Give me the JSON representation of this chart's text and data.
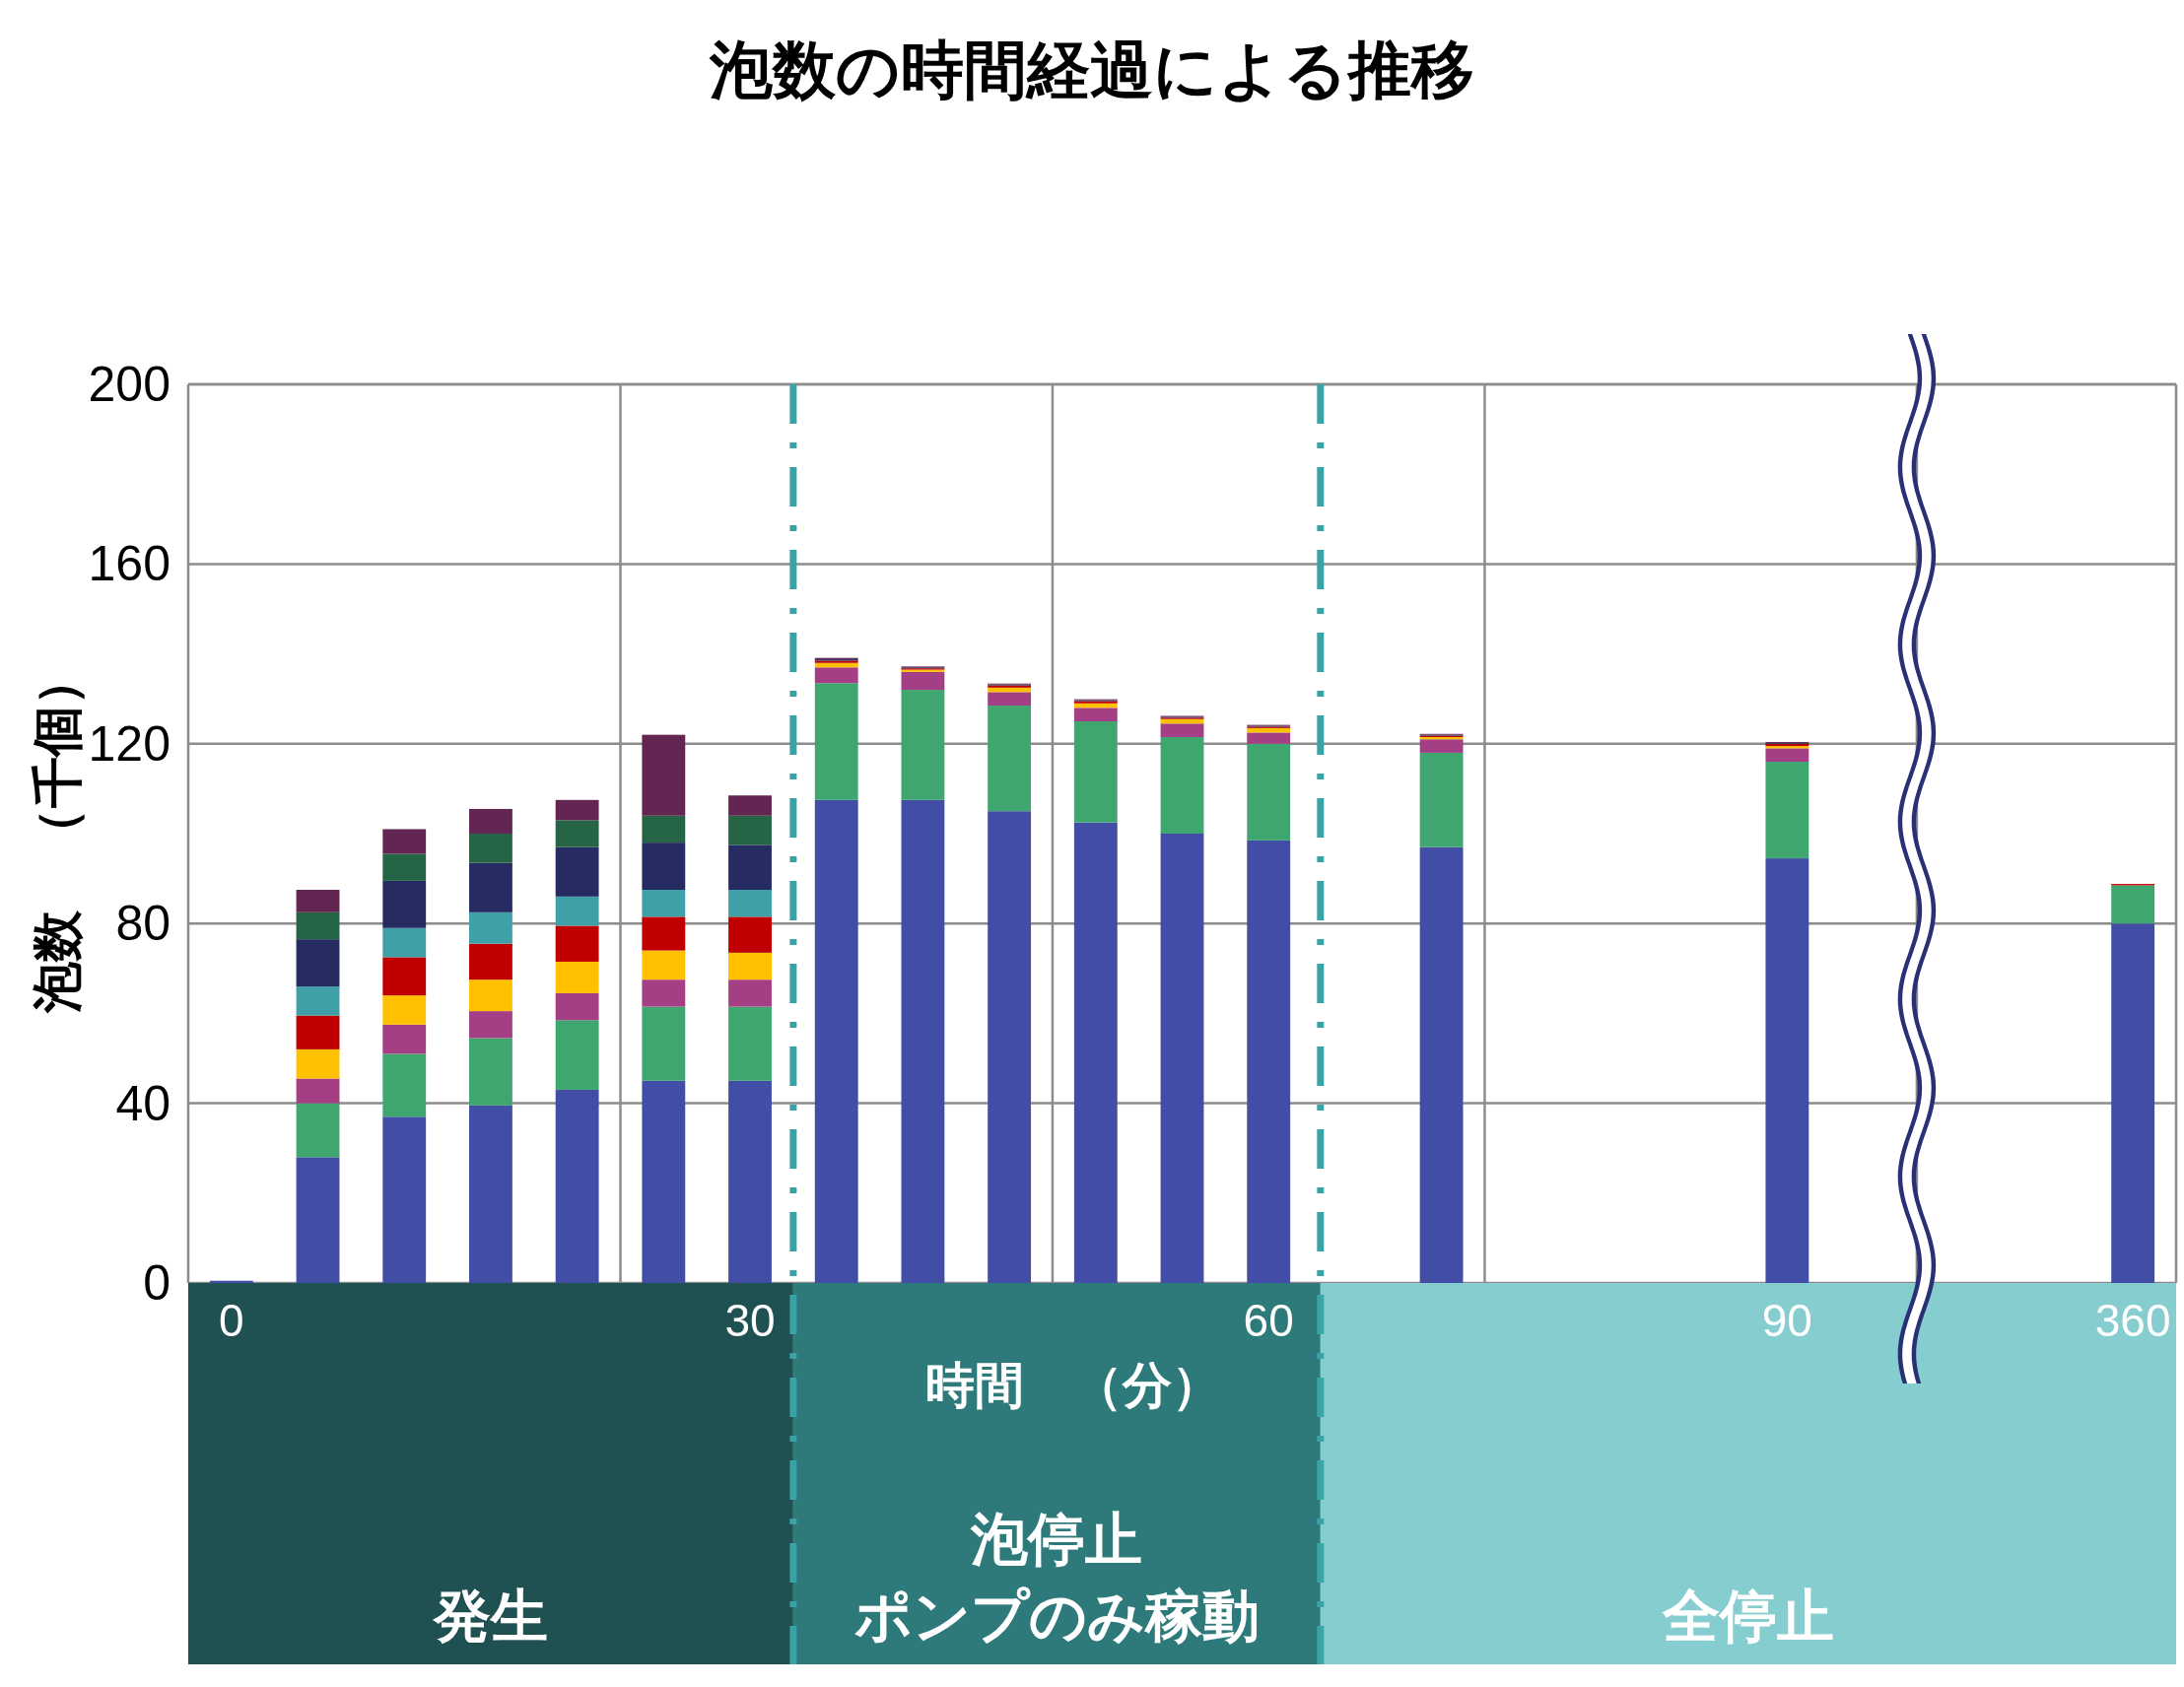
{
  "chart_data": {
    "type": "bar",
    "title": "泡数の時間経過による推移",
    "xlabel": "時間　（分）",
    "ylabel": "泡数　（千個）",
    "categories": [
      "0",
      null,
      null,
      null,
      null,
      null,
      "30",
      null,
      null,
      null,
      null,
      null,
      "60",
      null,
      null,
      null,
      null,
      null,
      "90",
      null,
      null,
      null,
      "360"
    ],
    "stacked": true,
    "series": [
      {
        "color": "#424ea6",
        "values": [
          0.5,
          28,
          37,
          39.5,
          43,
          45,
          45,
          107.5,
          107.5,
          105,
          102.5,
          100,
          98.5,
          null,
          97,
          null,
          null,
          null,
          94.5,
          null,
          null,
          null,
          80
        ]
      },
      {
        "color": "#40a66f",
        "values": [
          null,
          12,
          14,
          15,
          15.5,
          16.5,
          16.5,
          26,
          24.5,
          23.5,
          22.5,
          21.5,
          21.5,
          null,
          21,
          null,
          null,
          null,
          21.5,
          null,
          null,
          null,
          8.5
        ]
      },
      {
        "color": "#a43f86",
        "values": [
          null,
          5.5,
          6.5,
          6,
          6,
          6,
          6,
          3.5,
          4,
          3,
          3,
          3,
          2.5,
          null,
          3,
          null,
          null,
          null,
          3,
          null,
          null,
          null,
          null
        ]
      },
      {
        "color": "#ffc000",
        "values": [
          null,
          6.5,
          6.5,
          7,
          7,
          6.5,
          6,
          1,
          0.5,
          1,
          1,
          1,
          1,
          null,
          0.5,
          null,
          null,
          null,
          0.5,
          null,
          null,
          null,
          null
        ]
      },
      {
        "color": "#c00000",
        "values": [
          null,
          7.5,
          8.5,
          8,
          8,
          7.5,
          8,
          0.5,
          0.3,
          0.5,
          0.5,
          0.3,
          0.3,
          null,
          0.3,
          null,
          null,
          null,
          0.5,
          null,
          null,
          null,
          0.3
        ]
      },
      {
        "color": "#40a0a8",
        "values": [
          null,
          6.5,
          6.5,
          7,
          6.5,
          6,
          6,
          null,
          null,
          null,
          null,
          null,
          null,
          null,
          null,
          null,
          null,
          null,
          null,
          null,
          null,
          null,
          null
        ]
      },
      {
        "color": "#262c62",
        "values": [
          null,
          10.5,
          10.5,
          11,
          11,
          10.5,
          10,
          0.3,
          0.2,
          0.2,
          0.2,
          0.2,
          0.2,
          null,
          0.2,
          null,
          null,
          null,
          0.2,
          null,
          null,
          null,
          null
        ]
      },
      {
        "color": "#256546",
        "values": [
          null,
          6,
          6,
          6.5,
          6,
          6,
          6.5,
          null,
          null,
          null,
          null,
          null,
          null,
          null,
          null,
          null,
          null,
          null,
          null,
          null,
          null,
          null,
          null
        ]
      },
      {
        "color": "#632551",
        "values": [
          null,
          5,
          5.5,
          5.5,
          4.5,
          18,
          4.5,
          0.3,
          0.2,
          0.2,
          0.2,
          0.2,
          0.2,
          null,
          0.2,
          null,
          null,
          null,
          0.2,
          null,
          null,
          null,
          null
        ]
      }
    ],
    "ylim": [
      0,
      200
    ],
    "yticks": [
      0,
      40,
      80,
      120,
      160,
      200
    ],
    "grid": true,
    "annotations": [
      "発生",
      "泡停止ポンプのみ稼動",
      "全停止"
    ]
  }
}
